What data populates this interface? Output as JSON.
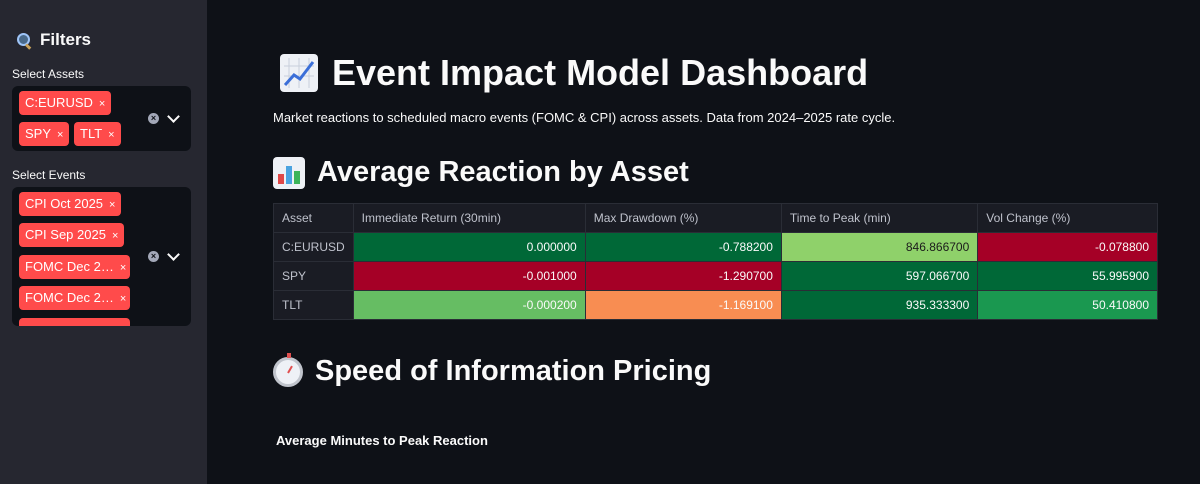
{
  "sidebar": {
    "title": "Filters",
    "assets_label": "Select Assets",
    "assets": [
      "C:EURUSD",
      "SPY",
      "TLT"
    ],
    "events_label": "Select Events",
    "events": [
      "CPI Oct 2025",
      "CPI Sep 2025",
      "FOMC Dec 2…",
      "FOMC Dec 2…"
    ],
    "remove_glyph": "×",
    "clear_glyph": "×"
  },
  "header": {
    "title": "Event Impact Model Dashboard",
    "subtitle": "Market reactions to scheduled macro events (FOMC & CPI) across assets. Data from 2024–2025 rate cycle."
  },
  "section1": {
    "title": "Average Reaction by Asset",
    "columns": [
      "Asset",
      "Immediate Return (30min)",
      "Max Drawdown (%)",
      "Time to Peak (min)",
      "Vol Change (%)"
    ],
    "rows": [
      {
        "asset": "C:EURUSD",
        "cells": [
          "0.000000",
          "-0.788200",
          "846.866700",
          "-0.078800"
        ]
      },
      {
        "asset": "SPY",
        "cells": [
          "-0.001000",
          "-1.290700",
          "597.066700",
          "55.995900"
        ]
      },
      {
        "asset": "TLT",
        "cells": [
          "-0.000200",
          "-1.169100",
          "935.333300",
          "50.410800"
        ]
      }
    ],
    "cell_colors": [
      [
        "#006837",
        "#006837",
        "#8fd16a",
        "#a50026"
      ],
      [
        "#a50026",
        "#a50026",
        "#006837",
        "#006837"
      ],
      [
        "#66bd63",
        "#f88d52",
        "#006837",
        "#1a9850"
      ]
    ]
  },
  "section2": {
    "title": "Speed of Information Pricing",
    "chart_title": "Average Minutes to Peak Reaction"
  }
}
